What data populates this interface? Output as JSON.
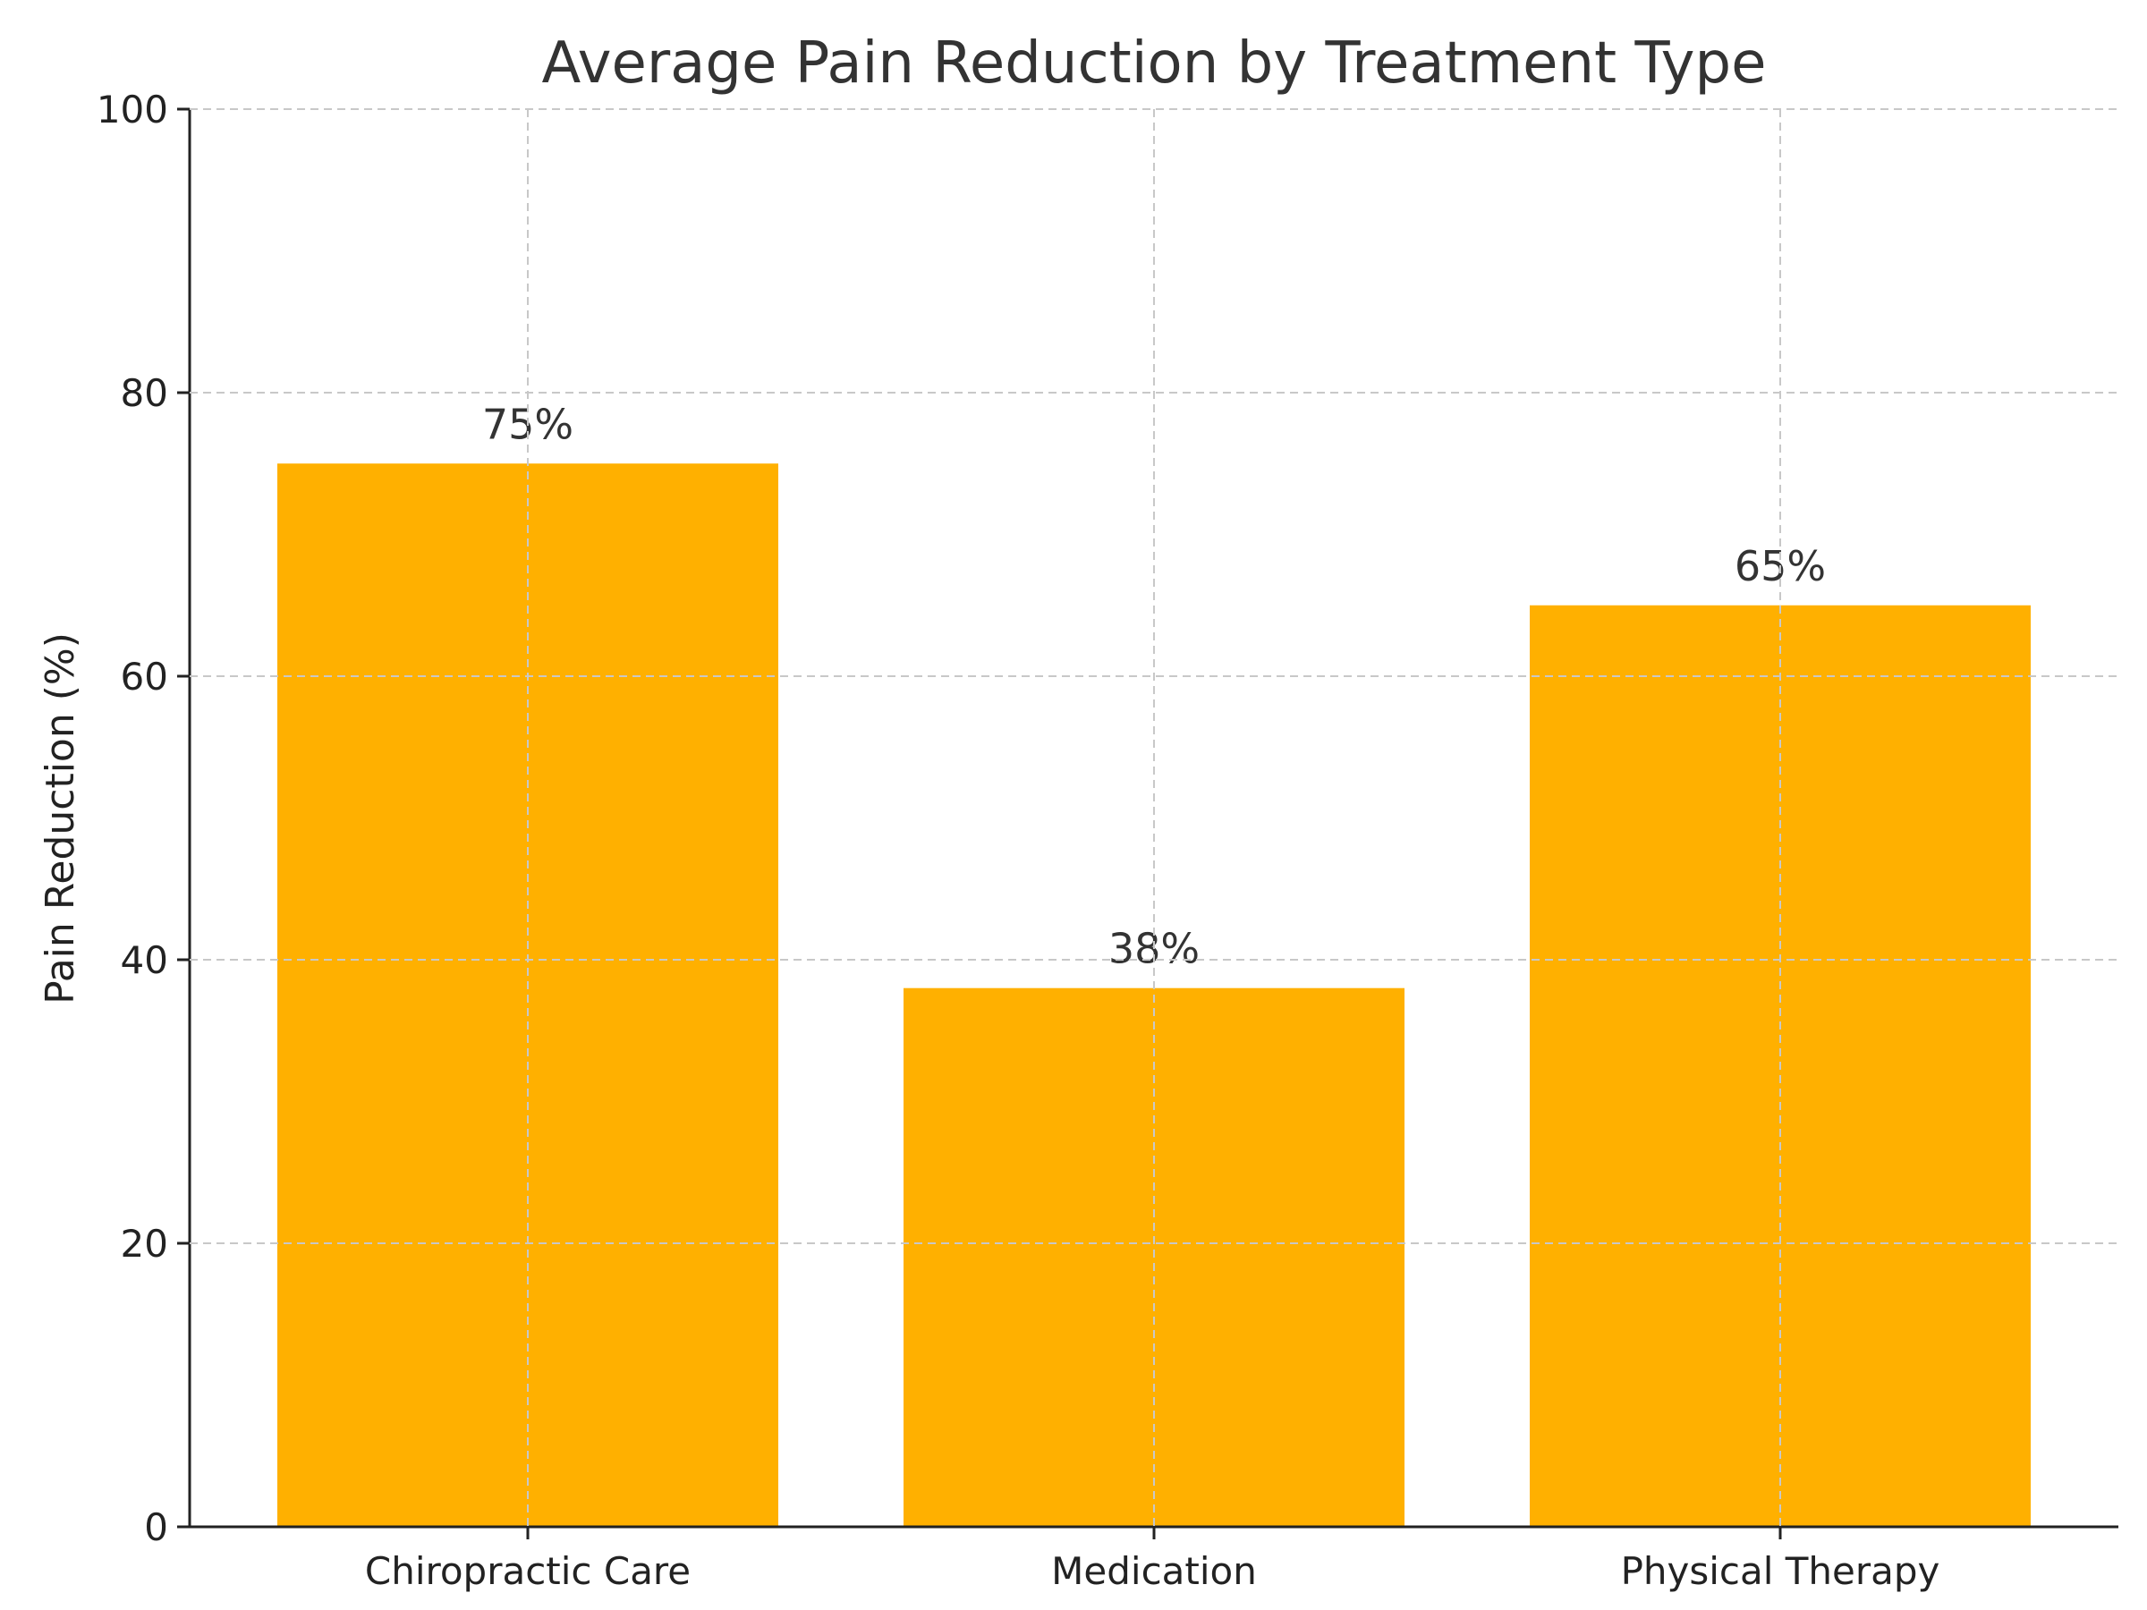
{
  "chart_data": {
    "type": "bar",
    "title": "Average Pain Reduction by Treatment Type",
    "xlabel": "",
    "ylabel": "Pain Reduction (%)",
    "categories": [
      "Chiropractic Care",
      "Medication",
      "Physical Therapy"
    ],
    "values": [
      75,
      38,
      65
    ],
    "value_labels": [
      "75%",
      "38%",
      "65%"
    ],
    "ylim": [
      0,
      100
    ],
    "yticks": [
      0,
      20,
      40,
      60,
      80,
      100
    ],
    "grid": true,
    "bar_color": "#FFB000"
  }
}
